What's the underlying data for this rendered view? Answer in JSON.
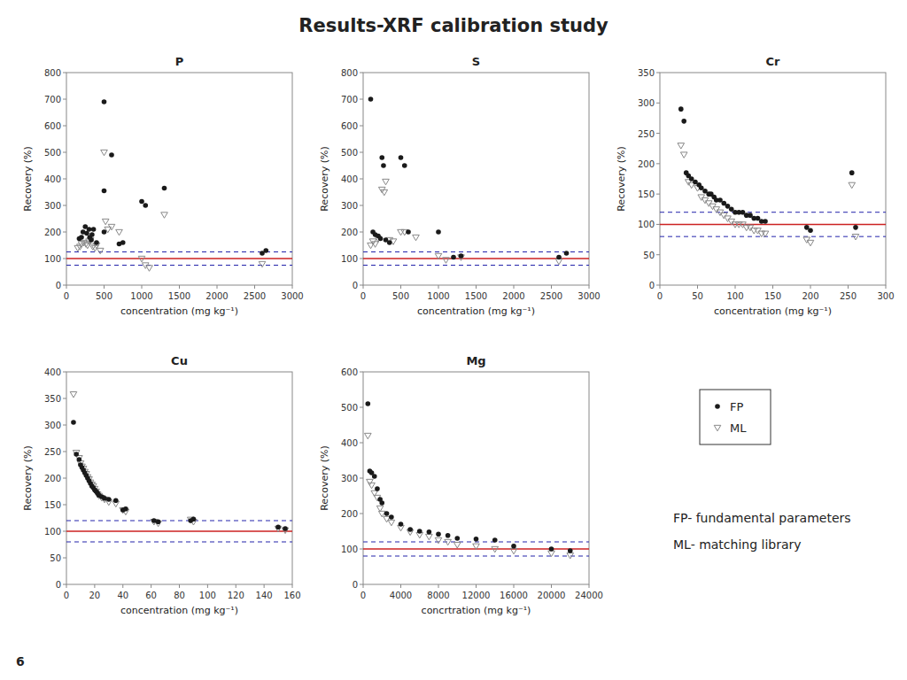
{
  "title": "Results-XRF calibration study",
  "annotations": [
    "FP- fundamental parameters",
    "ML- matching library",
    "6"
  ],
  "chart_data": [
    {
      "type": "scatter",
      "title": "P",
      "x_label": "concentration (mg kg⁻¹)",
      "y_label": "Recovery (%)",
      "xlim": [
        0,
        3000
      ],
      "ylim": [
        0,
        800
      ],
      "xticks": [
        0,
        500,
        1000,
        1500,
        2000,
        2500,
        3000
      ],
      "yticks": [
        0,
        100,
        200,
        300,
        400,
        500,
        600,
        700,
        800
      ],
      "hlines": [
        {
          "value": 100,
          "color": "#cc2222",
          "line_style": "solid"
        },
        {
          "value": 75,
          "color": "#2222aa",
          "line_style": "dashed"
        },
        {
          "value": 125,
          "color": "#2222aa",
          "line_style": "dashed"
        }
      ],
      "series": [
        {
          "name": "FP",
          "color": "#1a1a1a",
          "marker": "circle",
          "x": [
            170,
            200,
            220,
            250,
            270,
            300,
            310,
            330,
            340,
            360,
            400,
            500,
            500,
            500,
            600,
            700,
            750,
            1000,
            1050,
            1300,
            2600,
            2650
          ],
          "values": [
            175,
            180,
            200,
            220,
            195,
            210,
            180,
            170,
            190,
            210,
            160,
            690,
            355,
            200,
            490,
            155,
            160,
            315,
            300,
            365,
            120,
            130
          ]
        },
        {
          "name": "ML",
          "color": "#888888",
          "marker": "triangle-down-open",
          "x": [
            150,
            180,
            200,
            230,
            260,
            280,
            300,
            320,
            350,
            380,
            400,
            450,
            500,
            520,
            550,
            600,
            700,
            1000,
            1050,
            1100,
            1300,
            2600
          ],
          "values": [
            140,
            145,
            155,
            160,
            155,
            150,
            165,
            170,
            145,
            140,
            150,
            130,
            500,
            240,
            210,
            220,
            200,
            100,
            75,
            65,
            265,
            80
          ]
        }
      ]
    },
    {
      "type": "scatter",
      "title": "S",
      "x_label": "concentration (mg kg⁻¹)",
      "y_label": "Recovery (%)",
      "xlim": [
        0,
        3000
      ],
      "ylim": [
        0,
        800
      ],
      "xticks": [
        0,
        500,
        1000,
        1500,
        2000,
        2500,
        3000
      ],
      "yticks": [
        0,
        100,
        200,
        300,
        400,
        500,
        600,
        700,
        800
      ],
      "hlines": [
        {
          "value": 100,
          "color": "#cc2222",
          "line_style": "solid"
        },
        {
          "value": 75,
          "color": "#2222aa",
          "line_style": "dashed"
        },
        {
          "value": 125,
          "color": "#2222aa",
          "line_style": "dashed"
        }
      ],
      "series": [
        {
          "name": "FP",
          "color": "#1a1a1a",
          "marker": "circle",
          "x": [
            100,
            130,
            160,
            200,
            230,
            250,
            270,
            300,
            350,
            500,
            550,
            600,
            1000,
            1200,
            1300,
            2600,
            2700
          ],
          "values": [
            700,
            200,
            190,
            185,
            175,
            480,
            450,
            170,
            160,
            480,
            450,
            200,
            200,
            105,
            110,
            105,
            120
          ]
        },
        {
          "name": "ML",
          "color": "#888888",
          "marker": "triangle-down-open",
          "x": [
            100,
            130,
            160,
            200,
            250,
            280,
            300,
            350,
            400,
            500,
            550,
            700,
            1000,
            1100,
            1300,
            2600
          ],
          "values": [
            150,
            165,
            155,
            175,
            360,
            350,
            390,
            170,
            165,
            200,
            200,
            180,
            110,
            95,
            105,
            90
          ]
        }
      ]
    },
    {
      "type": "scatter",
      "title": "Cr",
      "x_label": "concentration (mg kg⁻¹)",
      "y_label": "Recovery (%)",
      "xlim": [
        0,
        300
      ],
      "ylim": [
        0,
        350
      ],
      "xticks": [
        0,
        50,
        100,
        150,
        200,
        250,
        300
      ],
      "yticks": [
        0,
        50,
        100,
        150,
        200,
        250,
        300,
        350
      ],
      "hlines": [
        {
          "value": 100,
          "color": "#cc2222",
          "line_style": "solid"
        },
        {
          "value": 80,
          "color": "#2222aa",
          "line_style": "dashed"
        },
        {
          "value": 120,
          "color": "#2222aa",
          "line_style": "dashed"
        }
      ],
      "series": [
        {
          "name": "FP",
          "color": "#1a1a1a",
          "marker": "circle",
          "x": [
            28,
            32,
            35,
            38,
            42,
            47,
            52,
            55,
            60,
            65,
            68,
            72,
            75,
            80,
            85,
            90,
            95,
            100,
            105,
            110,
            115,
            120,
            125,
            130,
            135,
            140,
            195,
            200,
            255,
            260
          ],
          "values": [
            290,
            270,
            185,
            180,
            175,
            170,
            165,
            160,
            155,
            150,
            150,
            145,
            140,
            140,
            135,
            130,
            125,
            120,
            120,
            120,
            115,
            115,
            110,
            110,
            105,
            105,
            95,
            90,
            185,
            95
          ]
        },
        {
          "name": "ML",
          "color": "#888888",
          "marker": "triangle-down-open",
          "x": [
            28,
            32,
            38,
            42,
            50,
            55,
            60,
            65,
            70,
            75,
            80,
            85,
            90,
            95,
            100,
            105,
            110,
            115,
            120,
            125,
            130,
            135,
            140,
            195,
            200,
            255,
            260
          ],
          "values": [
            230,
            215,
            170,
            165,
            160,
            145,
            140,
            135,
            130,
            125,
            120,
            115,
            110,
            105,
            100,
            100,
            100,
            95,
            95,
            90,
            90,
            85,
            85,
            75,
            70,
            165,
            80
          ]
        }
      ]
    },
    {
      "type": "scatter",
      "title": "Cu",
      "x_label": "concentration (mg kg⁻¹)",
      "y_label": "Recovery (%)",
      "xlim": [
        0,
        160
      ],
      "ylim": [
        0,
        400
      ],
      "xticks": [
        0,
        20,
        40,
        60,
        80,
        100,
        120,
        140,
        160
      ],
      "yticks": [
        0,
        50,
        100,
        150,
        200,
        250,
        300,
        350,
        400
      ],
      "hlines": [
        {
          "value": 100,
          "color": "#cc2222",
          "line_style": "solid"
        },
        {
          "value": 80,
          "color": "#2222aa",
          "line_style": "dashed"
        },
        {
          "value": 120,
          "color": "#2222aa",
          "line_style": "dashed"
        }
      ],
      "series": [
        {
          "name": "FP",
          "color": "#1a1a1a",
          "marker": "circle",
          "x": [
            5,
            7,
            9,
            10,
            11,
            12,
            13,
            14,
            15,
            16,
            17,
            18,
            19,
            20,
            21,
            22,
            23,
            25,
            27,
            30,
            35,
            40,
            42,
            62,
            65,
            88,
            90,
            150,
            155
          ],
          "values": [
            305,
            245,
            235,
            225,
            220,
            215,
            210,
            205,
            200,
            195,
            190,
            185,
            182,
            178,
            175,
            172,
            168,
            165,
            162,
            160,
            158,
            140,
            142,
            120,
            118,
            120,
            123,
            108,
            105
          ]
        },
        {
          "name": "ML",
          "color": "#888888",
          "marker": "triangle-down-open",
          "x": [
            5,
            7,
            9,
            10,
            11,
            12,
            13,
            14,
            15,
            16,
            17,
            18,
            19,
            20,
            21,
            22,
            23,
            25,
            27,
            30,
            35,
            40,
            42,
            62,
            65,
            88,
            90,
            150,
            155
          ],
          "values": [
            358,
            248,
            238,
            228,
            222,
            218,
            212,
            208,
            202,
            198,
            192,
            188,
            185,
            180,
            175,
            170,
            167,
            163,
            160,
            155,
            152,
            140,
            137,
            118,
            115,
            122,
            118,
            105,
            102
          ]
        }
      ]
    },
    {
      "type": "scatter",
      "title": "Mg",
      "x_label": "concrtration (mg kg⁻¹)",
      "y_label": "Recovery (%)",
      "xlim": [
        0,
        24000
      ],
      "ylim": [
        0,
        600
      ],
      "xticks": [
        0,
        4000,
        8000,
        12000,
        16000,
        20000,
        24000
      ],
      "yticks": [
        0,
        100,
        200,
        300,
        400,
        500,
        600
      ],
      "hlines": [
        {
          "value": 100,
          "color": "#cc2222",
          "line_style": "solid"
        },
        {
          "value": 80,
          "color": "#2222aa",
          "line_style": "dashed"
        },
        {
          "value": 120,
          "color": "#2222aa",
          "line_style": "dashed"
        }
      ],
      "series": [
        {
          "name": "FP",
          "color": "#1a1a1a",
          "marker": "circle",
          "x": [
            500,
            700,
            900,
            1200,
            1500,
            1800,
            2000,
            2500,
            3000,
            4000,
            5000,
            6000,
            7000,
            8000,
            9000,
            10000,
            12000,
            14000,
            16000,
            20000,
            22000
          ],
          "values": [
            510,
            320,
            315,
            305,
            270,
            240,
            230,
            200,
            190,
            170,
            155,
            150,
            148,
            142,
            138,
            130,
            128,
            125,
            108,
            100,
            95
          ]
        },
        {
          "name": "ML",
          "color": "#888888",
          "marker": "triangle-down-open",
          "x": [
            500,
            700,
            900,
            1200,
            1500,
            1800,
            2000,
            2500,
            3000,
            4000,
            5000,
            6000,
            7000,
            8000,
            9000,
            10000,
            12000,
            14000,
            16000,
            20000,
            22000
          ],
          "values": [
            420,
            290,
            280,
            258,
            245,
            215,
            200,
            185,
            175,
            160,
            148,
            140,
            135,
            125,
            120,
            112,
            108,
            100,
            95,
            88,
            82
          ]
        }
      ]
    }
  ]
}
